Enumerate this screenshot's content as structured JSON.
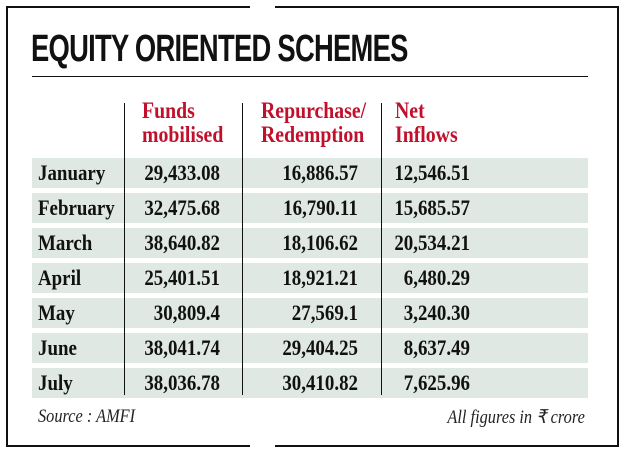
{
  "title": "EQUITY ORIENTED SCHEMES",
  "colors": {
    "header_text": "#c1102b",
    "row_band": "#dfe8e2",
    "text": "#111111"
  },
  "chart_data": {
    "type": "table",
    "title": "EQUITY ORIENTED SCHEMES",
    "columns": [
      "",
      "Funds mobilised",
      "Repurchase/ Redemption",
      "Net Inflows"
    ],
    "header_lines": [
      [
        "Funds",
        "mobilised"
      ],
      [
        "Repurchase/",
        "Redemption"
      ],
      [
        "Net",
        "Inflows"
      ]
    ],
    "rows": [
      {
        "month": "January",
        "funds": "29,433.08",
        "redemption": "16,886.57",
        "net": "12,546.51"
      },
      {
        "month": "February",
        "funds": "32,475.68",
        "redemption": "16,790.11",
        "net": "15,685.57"
      },
      {
        "month": "March",
        "funds": "38,640.82",
        "redemption": "18,106.62",
        "net": "20,534.21"
      },
      {
        "month": "April",
        "funds": "25,401.51",
        "redemption": "18,921.21",
        "net": "6,480.29"
      },
      {
        "month": "May",
        "funds": "30,809.4",
        "redemption": "27,569.1",
        "net": "3,240.30"
      },
      {
        "month": "June",
        "funds": "38,041.74",
        "redemption": "29,404.25",
        "net": "8,637.49"
      },
      {
        "month": "July",
        "funds": "38,036.78",
        "redemption": "30,410.82",
        "net": "7,625.96"
      }
    ],
    "source": "Source : AMFI",
    "unit_note": "All figures in ₹ crore"
  }
}
